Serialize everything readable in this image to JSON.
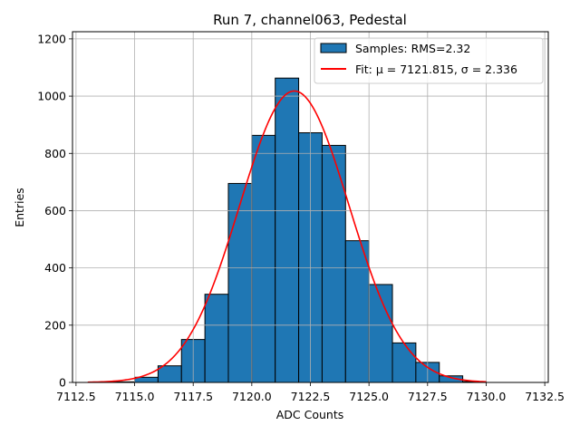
{
  "chart_data": {
    "type": "bar",
    "title": "Run 7, channel063, Pedestal",
    "xlabel": "ADC Counts",
    "ylabel": "Entries",
    "xlim": [
      7112.35,
      7132.65
    ],
    "ylim": [
      0,
      1225
    ],
    "x_ticks": [
      7112.5,
      7115.0,
      7117.5,
      7120.0,
      7122.5,
      7125.0,
      7127.5,
      7130.0,
      7132.5
    ],
    "x_tick_labels": [
      "7112.5",
      "7115.0",
      "7117.5",
      "7120.0",
      "7122.5",
      "7125.0",
      "7127.5",
      "7130.0",
      "7132.5"
    ],
    "y_ticks": [
      0,
      200,
      400,
      600,
      800,
      1000,
      1200
    ],
    "y_tick_labels": [
      "0",
      "200",
      "400",
      "600",
      "800",
      "1000",
      "1200"
    ],
    "grid": true,
    "legend_position": "top-right",
    "series": [
      {
        "name": "Samples: RMS=2.32",
        "kind": "histogram",
        "color": "#1f77b4",
        "edge_color": "#000000",
        "bins": [
          {
            "x0": 7114,
            "x1": 7115,
            "value": 2
          },
          {
            "x0": 7115,
            "x1": 7116,
            "value": 18
          },
          {
            "x0": 7116,
            "x1": 7117,
            "value": 58
          },
          {
            "x0": 7117,
            "x1": 7118,
            "value": 150
          },
          {
            "x0": 7118,
            "x1": 7119,
            "value": 308
          },
          {
            "x0": 7119,
            "x1": 7120,
            "value": 695
          },
          {
            "x0": 7120,
            "x1": 7121,
            "value": 863
          },
          {
            "x0": 7121,
            "x1": 7122,
            "value": 1063
          },
          {
            "x0": 7122,
            "x1": 7123,
            "value": 872
          },
          {
            "x0": 7123,
            "x1": 7124,
            "value": 828
          },
          {
            "x0": 7124,
            "x1": 7125,
            "value": 495
          },
          {
            "x0": 7125,
            "x1": 7126,
            "value": 342
          },
          {
            "x0": 7126,
            "x1": 7127,
            "value": 138
          },
          {
            "x0": 7127,
            "x1": 7128,
            "value": 70
          },
          {
            "x0": 7128,
            "x1": 7129,
            "value": 23
          },
          {
            "x0": 7129,
            "x1": 7130,
            "value": 3
          }
        ]
      },
      {
        "name": "Fit: μ = 7121.815, σ = 2.336",
        "kind": "gaussian_fit",
        "color": "#ff0000",
        "mu": 7121.815,
        "sigma": 2.336,
        "amplitude": 1018,
        "x_range": [
          7113,
          7130
        ]
      }
    ]
  }
}
